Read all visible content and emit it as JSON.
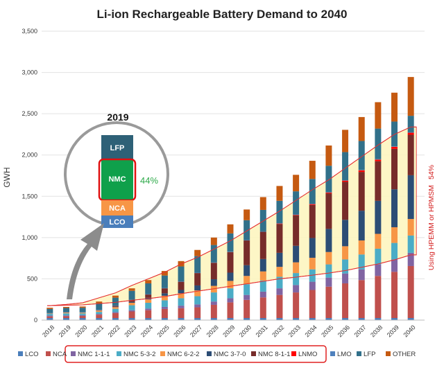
{
  "chart_data": {
    "type": "bar",
    "stacked": true,
    "title": "Li-ion Rechargeable Battery Demand to 2040",
    "ylabel": "GWH",
    "xlabel": "",
    "ylim": [
      0,
      3500
    ],
    "yticks": [
      "0",
      "500",
      "1,000",
      "1,500",
      "2,000",
      "2,500",
      "3,000",
      "3,500"
    ],
    "ytick_values": [
      0,
      500,
      1000,
      1500,
      2000,
      2500,
      3000,
      3500
    ],
    "categories": [
      "2018",
      "2019",
      "2020",
      "2021",
      "2022",
      "2023",
      "2024",
      "2025",
      "2026",
      "2027",
      "2028",
      "2029",
      "2030",
      "2031",
      "2032",
      "2033",
      "2034",
      "2035",
      "2036",
      "2037",
      "2038",
      "2039",
      "2040"
    ],
    "series": [
      {
        "name": "LCO",
        "color": "#4a7ebb",
        "values": [
          25,
          25,
          25,
          25,
          25,
          25,
          25,
          25,
          25,
          25,
          25,
          25,
          25,
          25,
          25,
          25,
          25,
          25,
          25,
          25,
          25,
          25,
          25
        ]
      },
      {
        "name": "NCA",
        "color": "#c0504d",
        "values": [
          20,
          22,
          25,
          40,
          60,
          80,
          95,
          110,
          120,
          130,
          160,
          190,
          220,
          250,
          280,
          310,
          340,
          380,
          420,
          460,
          510,
          560,
          630
        ]
      },
      {
        "name": "NMC 1-1-1",
        "color": "#8064a2",
        "values": [
          10,
          10,
          10,
          10,
          12,
          15,
          20,
          25,
          30,
          35,
          40,
          50,
          60,
          70,
          80,
          90,
          100,
          110,
          120,
          130,
          140,
          150,
          160
        ]
      },
      {
        "name": "NMC 5-3-2",
        "color": "#4bacc6",
        "values": [
          20,
          25,
          20,
          25,
          40,
          60,
          70,
          80,
          90,
          100,
          110,
          120,
          130,
          135,
          140,
          145,
          150,
          160,
          170,
          180,
          190,
          200,
          210
        ]
      },
      {
        "name": "NMC 6-2-2",
        "color": "#f79646",
        "values": [
          5,
          10,
          10,
          15,
          20,
          30,
          40,
          55,
          60,
          70,
          80,
          90,
          100,
          110,
          120,
          130,
          140,
          150,
          160,
          170,
          180,
          190,
          200
        ]
      },
      {
        "name": "NMC 3-7-0",
        "color": "#2c4d75",
        "values": [
          0,
          0,
          0,
          0,
          5,
          10,
          20,
          30,
          40,
          60,
          80,
          100,
          130,
          150,
          170,
          200,
          240,
          280,
          320,
          360,
          400,
          460,
          530
        ]
      },
      {
        "name": "NMC 8-1-1",
        "color": "#772c2a",
        "values": [
          0,
          0,
          0,
          5,
          10,
          20,
          40,
          60,
          100,
          150,
          200,
          250,
          300,
          330,
          350,
          370,
          400,
          430,
          460,
          470,
          480,
          490,
          490
        ]
      },
      {
        "name": "LNMO",
        "color": "#ff0000",
        "values": [
          0,
          0,
          0,
          0,
          0,
          0,
          0,
          0,
          0,
          0,
          0,
          0,
          0,
          0,
          5,
          5,
          10,
          10,
          15,
          20,
          20,
          25,
          25
        ]
      },
      {
        "name": "LMO",
        "color": "#4f81bd",
        "values": [
          5,
          5,
          5,
          5,
          5,
          5,
          5,
          5,
          5,
          5,
          5,
          5,
          5,
          5,
          5,
          5,
          5,
          5,
          5,
          5,
          5,
          5,
          5
        ]
      },
      {
        "name": "LFP",
        "color": "#31708a",
        "values": [
          50,
          50,
          55,
          80,
          95,
          110,
          130,
          150,
          180,
          200,
          210,
          220,
          240,
          260,
          270,
          280,
          300,
          320,
          340,
          350,
          370,
          300,
          200
        ]
      },
      {
        "name": "OTHER",
        "color": "#c55a11",
        "values": [
          15,
          13,
          15,
          20,
          25,
          30,
          40,
          55,
          65,
          75,
          90,
          110,
          130,
          155,
          180,
          200,
          220,
          245,
          270,
          290,
          320,
          350,
          470
        ]
      }
    ],
    "legend": [
      "LCO",
      "NCA",
      "NMC 1-1-1",
      "NMC 5-3-2",
      "NMC 6-2-2",
      "NMC 3-7-0",
      "NMC 8-1-1",
      "LNMO",
      "LMO",
      "LFP",
      "OTHER"
    ],
    "legend_position": "bottom",
    "annotations": {
      "inset_title": "2019",
      "inset_segments": [
        "LFP",
        "NMC",
        "NCA",
        "LCO"
      ],
      "inset_nmc_share": "44%",
      "right_note": "Using HPEMM or HPMSM",
      "right_share": "54%"
    },
    "band_lower": [
      175,
      180,
      185,
      200,
      215,
      240,
      260,
      285,
      320,
      350,
      380,
      410,
      440,
      470,
      500,
      520,
      545,
      570,
      600,
      640,
      680,
      730,
      790
    ],
    "band_upper": [
      175,
      190,
      210,
      270,
      330,
      420,
      500,
      580,
      680,
      760,
      860,
      960,
      1080,
      1200,
      1320,
      1450,
      1580,
      1700,
      1840,
      1980,
      2120,
      2250,
      2340
    ]
  }
}
